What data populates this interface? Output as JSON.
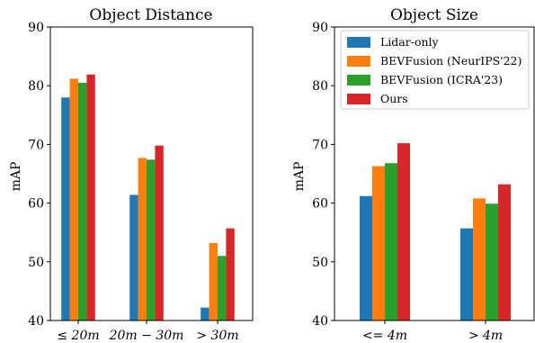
{
  "chart_data": [
    {
      "type": "bar",
      "title": "Object Distance",
      "xlabel": "",
      "ylabel": "mAP",
      "ylim": [
        40,
        90
      ],
      "yticks": [
        40,
        50,
        60,
        70,
        80,
        90
      ],
      "categories": [
        "≤ 20m",
        "20m − 30m",
        "> 30m"
      ],
      "series": [
        {
          "name": "Lidar-only",
          "values": [
            78.0,
            61.4,
            42.2
          ]
        },
        {
          "name": "BEVFusion (NeurIPS'22)",
          "values": [
            81.2,
            67.7,
            53.2
          ]
        },
        {
          "name": "BEVFusion (ICRA'23)",
          "values": [
            80.5,
            67.4,
            51.0
          ]
        },
        {
          "name": "Ours",
          "values": [
            81.9,
            69.8,
            55.7
          ]
        }
      ],
      "grid": false
    },
    {
      "type": "bar",
      "title": "Object Size",
      "xlabel": "",
      "ylabel": "mAP",
      "ylim": [
        40,
        90
      ],
      "yticks": [
        40,
        50,
        60,
        70,
        80,
        90
      ],
      "categories": [
        "<= 4m",
        "> 4m"
      ],
      "series": [
        {
          "name": "Lidar-only",
          "values": [
            61.2,
            55.7
          ]
        },
        {
          "name": "BEVFusion (NeurIPS'22)",
          "values": [
            66.3,
            60.8
          ]
        },
        {
          "name": "BEVFusion (ICRA'23)",
          "values": [
            66.8,
            59.9
          ]
        },
        {
          "name": "Ours",
          "values": [
            70.2,
            63.2
          ]
        }
      ],
      "legend": "top-left",
      "grid": false
    }
  ],
  "colors": [
    "#1f77b4",
    "#ff7f0e",
    "#2ca02c",
    "#d62728"
  ]
}
